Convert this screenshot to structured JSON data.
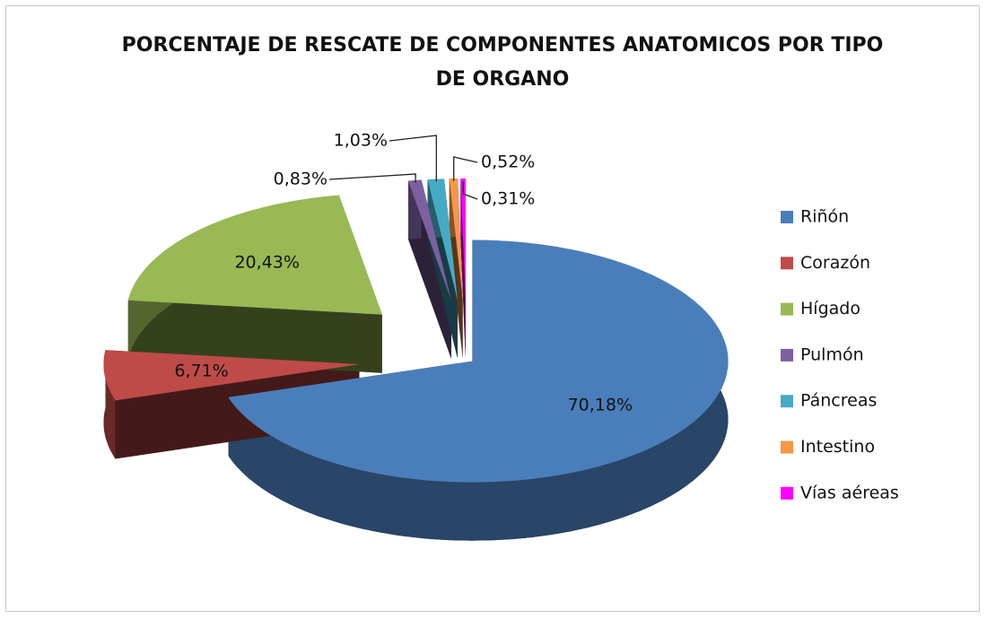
{
  "chart_data": {
    "type": "pie",
    "title": "PORCENTAJE DE RESCATE DE COMPONENTES ANATOMICOS POR TIPO DE ORGANO",
    "categories": [
      "Riñón",
      "Corazón",
      "Hígado",
      "Pulmón",
      "Páncreas",
      "Intestino",
      "Vías aéreas"
    ],
    "values": [
      70.18,
      6.71,
      20.43,
      0.83,
      1.03,
      0.52,
      0.31
    ],
    "value_labels": [
      "70,18%",
      "6,71%",
      "20,43%",
      "0,83%",
      "1,03%",
      "0,52%",
      "0,31%"
    ],
    "colors": [
      "#4a7ebb",
      "#be4b48",
      "#98b954",
      "#7d60a0",
      "#46aac5",
      "#f79646",
      "#ff00ff"
    ],
    "legend": "right"
  }
}
